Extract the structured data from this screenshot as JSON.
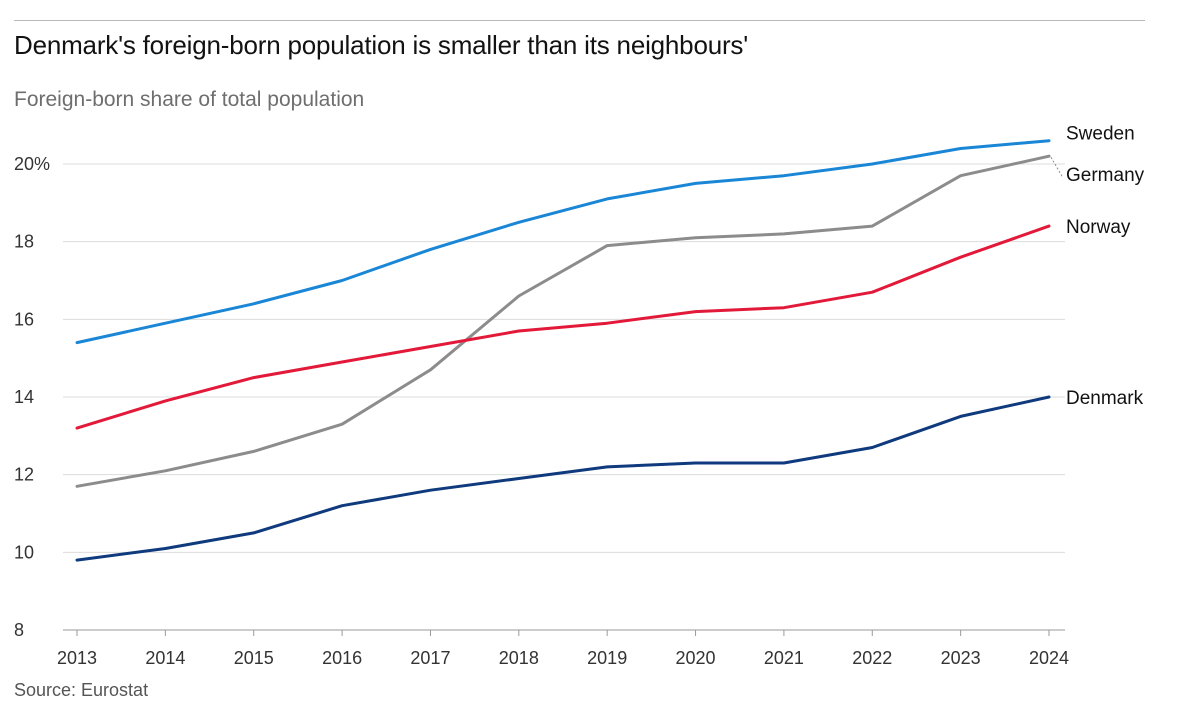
{
  "title": "Denmark's foreign-born population is smaller than its neighbours'",
  "subtitle": "Foreign-born share of total population",
  "source": "Source: Eurostat",
  "chart_data": {
    "type": "line",
    "x": [
      2013,
      2014,
      2015,
      2016,
      2017,
      2018,
      2019,
      2020,
      2021,
      2022,
      2023,
      2024
    ],
    "ylim": [
      8,
      21
    ],
    "yticks": [
      8,
      10,
      12,
      14,
      16,
      18,
      20
    ],
    "ytick_labels": [
      "8",
      "10",
      "12",
      "14",
      "16",
      "18",
      "20%"
    ],
    "grid": true,
    "series": [
      {
        "name": "Sweden",
        "color": "#1a86d6",
        "values": [
          15.4,
          15.9,
          16.4,
          17.0,
          17.8,
          18.5,
          19.1,
          19.5,
          19.7,
          20.0,
          20.4,
          20.6
        ]
      },
      {
        "name": "Germany",
        "color": "#8c8c8c",
        "values": [
          11.7,
          12.1,
          12.6,
          13.3,
          14.7,
          16.6,
          17.9,
          18.1,
          18.2,
          18.4,
          19.7,
          20.2
        ]
      },
      {
        "name": "Norway",
        "color": "#e3193a",
        "values": [
          13.2,
          13.9,
          14.5,
          14.9,
          15.3,
          15.7,
          15.9,
          16.2,
          16.3,
          16.7,
          17.6,
          18.4
        ]
      },
      {
        "name": "Denmark",
        "color": "#0f3a7d",
        "values": [
          9.8,
          10.1,
          10.5,
          11.2,
          11.6,
          11.9,
          12.2,
          12.3,
          12.3,
          12.7,
          13.5,
          14.0
        ]
      }
    ]
  }
}
